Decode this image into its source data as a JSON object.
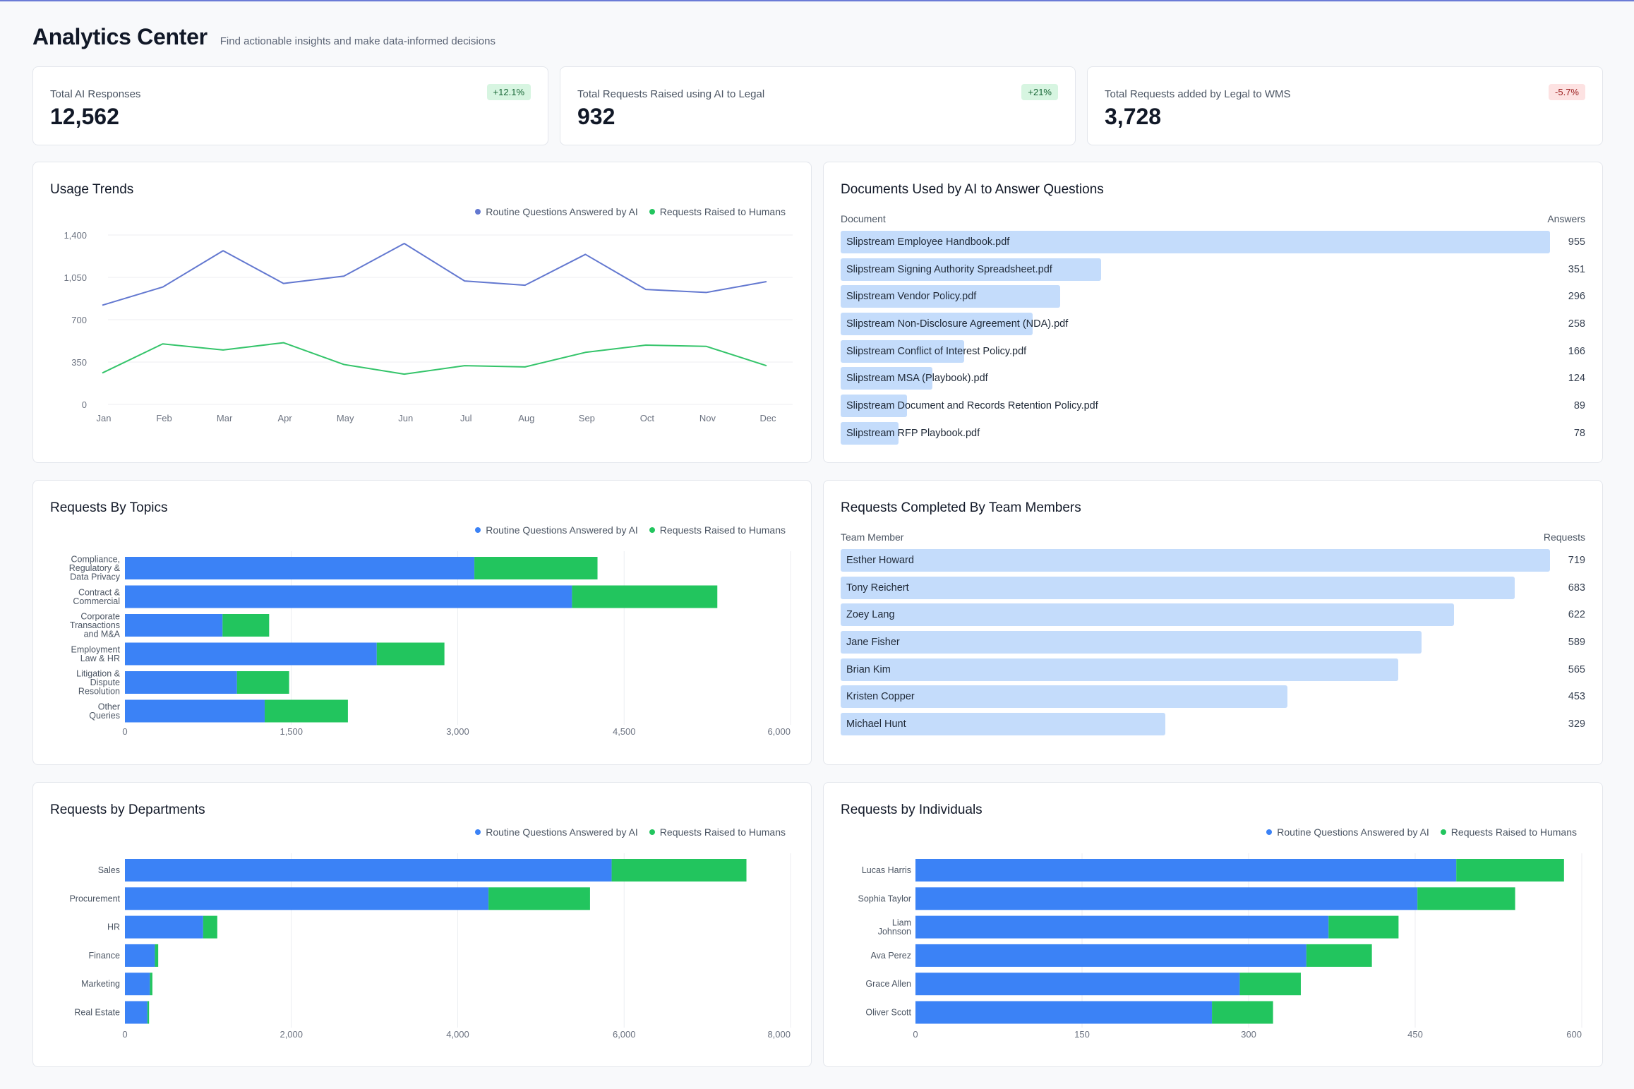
{
  "header": {
    "title": "Analytics Center",
    "subtitle": "Find actionable insights and make data-informed decisions"
  },
  "stats": [
    {
      "label": "Total AI Responses",
      "value": "12,562",
      "change": "+12.1%",
      "trend": "up"
    },
    {
      "label": "Total Requests Raised using AI to Legal",
      "value": "932",
      "change": "+21%",
      "trend": "up"
    },
    {
      "label": "Total Requests added by Legal to WMS",
      "value": "3,728",
      "change": "-5.7%",
      "trend": "down"
    }
  ],
  "colors": {
    "ai": "#3b82f6",
    "humans": "#22c55e",
    "line_ai": "#6378d0",
    "line_humans": "#34c46a",
    "list_bar": "#c4dcfb"
  },
  "legend": {
    "ai": "Routine Questions Answered by AI",
    "humans": "Requests Raised to Humans"
  },
  "usage_trends": {
    "title": "Usage Trends"
  },
  "documents": {
    "title": "Documents Used by AI to Answer Questions",
    "col_label": "Document",
    "col_value": "Answers",
    "max": 955,
    "rows": [
      {
        "label": "Slipstream Employee Handbook.pdf",
        "value": 955
      },
      {
        "label": "Slipstream Signing Authority Spreadsheet.pdf",
        "value": 351
      },
      {
        "label": "Slipstream Vendor Policy.pdf",
        "value": 296
      },
      {
        "label": "Slipstream Non-Disclosure Agreement (NDA).pdf",
        "value": 258
      },
      {
        "label": "Slipstream Conflict of Interest Policy.pdf",
        "value": 166
      },
      {
        "label": "Slipstream MSA (Playbook).pdf",
        "value": 124
      },
      {
        "label": "Slipstream Document and Records Retention Policy.pdf",
        "value": 89
      },
      {
        "label": "Slipstream RFP Playbook.pdf",
        "value": 78
      }
    ]
  },
  "team": {
    "title": "Requests Completed By Team Members",
    "col_label": "Team Member",
    "col_value": "Requests",
    "max": 719,
    "rows": [
      {
        "label": "Esther Howard",
        "value": 719
      },
      {
        "label": "Tony Reichert",
        "value": 683
      },
      {
        "label": "Zoey Lang",
        "value": 622
      },
      {
        "label": "Jane Fisher",
        "value": 589
      },
      {
        "label": "Brian Kim",
        "value": 565
      },
      {
        "label": "Kristen Copper",
        "value": 453
      },
      {
        "label": "Michael Hunt",
        "value": 329
      }
    ]
  },
  "topics": {
    "title": "Requests By Topics"
  },
  "departments": {
    "title": "Requests by Departments"
  },
  "individuals": {
    "title": "Requests by Individuals"
  },
  "chart_data": [
    {
      "id": "usage",
      "type": "line",
      "title": "Usage Trends",
      "x": [
        "Jan",
        "Feb",
        "Mar",
        "Apr",
        "May",
        "Jun",
        "Jul",
        "Aug",
        "Sep",
        "Oct",
        "Nov",
        "Dec"
      ],
      "series": [
        {
          "name": "Routine Questions Answered by AI",
          "values": [
            820,
            970,
            1270,
            1000,
            1060,
            1330,
            1020,
            985,
            1240,
            950,
            925,
            1015
          ]
        },
        {
          "name": "Requests Raised to Humans",
          "values": [
            260,
            500,
            450,
            510,
            330,
            250,
            320,
            310,
            430,
            490,
            480,
            320
          ]
        }
      ],
      "ylim": [
        0,
        1400
      ],
      "yticks": [
        "0",
        "350",
        "700",
        "1,050",
        "1,400"
      ],
      "grid": true,
      "legend": "top-right"
    },
    {
      "id": "topics",
      "type": "bar",
      "orientation": "horizontal",
      "stacked": true,
      "title": "Requests By Topics",
      "categories": [
        [
          "Compliance,",
          "Regulatory &",
          "Data Privacy"
        ],
        [
          "Contract &",
          "Commercial"
        ],
        [
          "Corporate",
          "Transactions",
          "and M&A"
        ],
        [
          "Employment",
          "Law & HR"
        ],
        [
          "Litigation &",
          "Dispute",
          "Resolution"
        ],
        [
          "Other",
          "Queries"
        ]
      ],
      "series": [
        {
          "name": "Routine Questions Answered by AI",
          "values": [
            3150,
            4030,
            880,
            2270,
            1010,
            1260
          ]
        },
        {
          "name": "Requests Raised to Humans",
          "values": [
            1110,
            1310,
            420,
            610,
            470,
            750
          ]
        }
      ],
      "xlim": [
        0,
        6000
      ],
      "xticks": [
        "0",
        "1,500",
        "3,000",
        "4,500",
        "6,000"
      ],
      "legend": "top-right"
    },
    {
      "id": "departments",
      "type": "bar",
      "orientation": "horizontal",
      "stacked": true,
      "title": "Requests by Departments",
      "categories": [
        [
          "Sales"
        ],
        [
          "Procurement"
        ],
        [
          "HR"
        ],
        [
          "Finance"
        ],
        [
          "Marketing"
        ],
        [
          "Real Estate"
        ]
      ],
      "series": [
        {
          "name": "Routine Questions Answered by AI",
          "values": [
            5850,
            4370,
            940,
            360,
            300,
            270
          ]
        },
        {
          "name": "Requests Raised to Humans",
          "values": [
            1620,
            1220,
            170,
            40,
            30,
            20
          ]
        }
      ],
      "xlim": [
        0,
        8000
      ],
      "xticks": [
        "0",
        "2,000",
        "4,000",
        "6,000",
        "8,000"
      ],
      "legend": "top-right"
    },
    {
      "id": "individuals",
      "type": "bar",
      "orientation": "horizontal",
      "stacked": true,
      "title": "Requests by Individuals",
      "categories": [
        [
          "Lucas Harris"
        ],
        [
          "Sophia Taylor"
        ],
        [
          "Liam",
          "Johnson"
        ],
        [
          "Ava Perez"
        ],
        [
          "Grace Allen"
        ],
        [
          "Oliver Scott"
        ]
      ],
      "series": [
        {
          "name": "Routine Questions Answered by AI",
          "values": [
            487,
            452,
            372,
            352,
            292,
            267
          ]
        },
        {
          "name": "Requests Raised to Humans",
          "values": [
            97,
            88,
            63,
            59,
            55,
            55
          ]
        }
      ],
      "xlim": [
        0,
        600
      ],
      "xticks": [
        "0",
        "150",
        "300",
        "450",
        "600"
      ],
      "legend": "top-right"
    }
  ]
}
